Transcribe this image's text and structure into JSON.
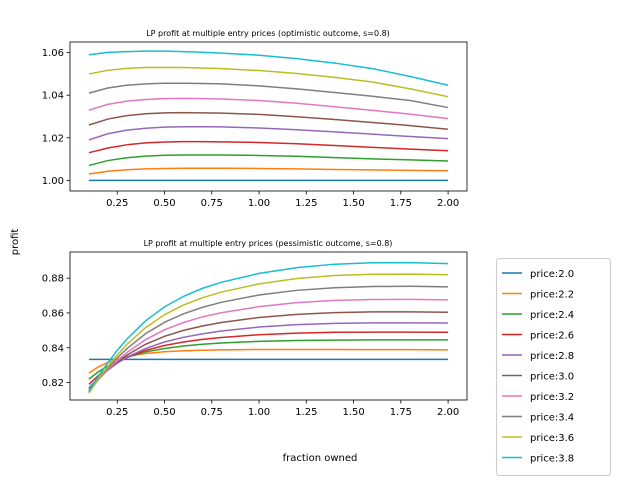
{
  "chart_data": [
    {
      "type": "line",
      "title": "LP profit at multiple entry prices (optimistic outcome, s=0.8)",
      "xlabel": "",
      "ylabel": "",
      "xlim": [
        0.0,
        2.1
      ],
      "ylim": [
        0.995,
        1.065
      ],
      "xticks": [
        0.25,
        0.5,
        0.75,
        1.0,
        1.25,
        1.5,
        1.75,
        2.0
      ],
      "xtick_labels": [
        "0.25",
        "0.50",
        "0.75",
        "1.00",
        "1.25",
        "1.50",
        "1.75",
        "2.00"
      ],
      "yticks": [
        1.0,
        1.02,
        1.04,
        1.06
      ],
      "ytick_labels": [
        "1.00",
        "1.02",
        "1.04",
        "1.06"
      ],
      "x": [
        0.1,
        0.2,
        0.3,
        0.4,
        0.5,
        0.6,
        0.7,
        0.8,
        1.0,
        1.2,
        1.4,
        1.6,
        1.8,
        2.0
      ],
      "series": [
        {
          "values": [
            1.0,
            1.0,
            1.0,
            1.0,
            1.0,
            1.0,
            1.0,
            1.0,
            1.0,
            1.0,
            1.0,
            1.0,
            1.0,
            1.0
          ]
        },
        {
          "values": [
            1.003,
            1.0043,
            1.005,
            1.0054,
            1.0056,
            1.0057,
            1.0057,
            1.0057,
            1.0056,
            1.0054,
            1.0051,
            1.0049,
            1.0047,
            1.0045
          ]
        },
        {
          "values": [
            1.007,
            1.0093,
            1.0106,
            1.0114,
            1.0118,
            1.0119,
            1.0119,
            1.0119,
            1.0117,
            1.0113,
            1.0107,
            1.0101,
            1.0096,
            1.0091
          ]
        },
        {
          "values": [
            1.013,
            1.0152,
            1.0167,
            1.0176,
            1.018,
            1.0182,
            1.0182,
            1.0181,
            1.0178,
            1.0172,
            1.0164,
            1.0155,
            1.0147,
            1.0139
          ]
        },
        {
          "values": [
            1.019,
            1.0219,
            1.0236,
            1.0245,
            1.025,
            1.0252,
            1.0252,
            1.0251,
            1.0246,
            1.0238,
            1.0228,
            1.0217,
            1.0206,
            1.0196
          ]
        },
        {
          "values": [
            1.026,
            1.0288,
            1.0304,
            1.0313,
            1.0317,
            1.0318,
            1.0317,
            1.0316,
            1.031,
            1.0299,
            1.0286,
            1.0272,
            1.0257,
            1.024
          ]
        },
        {
          "values": [
            1.033,
            1.0357,
            1.0372,
            1.038,
            1.0384,
            1.0385,
            1.0384,
            1.0382,
            1.0375,
            1.0362,
            1.0346,
            1.0329,
            1.0311,
            1.029
          ]
        },
        {
          "values": [
            1.041,
            1.0434,
            1.0447,
            1.0453,
            1.0456,
            1.0456,
            1.0455,
            1.0453,
            1.0444,
            1.043,
            1.0413,
            1.0395,
            1.0375,
            1.0342
          ]
        },
        {
          "values": [
            1.05,
            1.0517,
            1.0526,
            1.053,
            1.0531,
            1.053,
            1.0528,
            1.0525,
            1.0516,
            1.0502,
            1.0484,
            1.0462,
            1.043,
            1.0393
          ]
        },
        {
          "values": [
            1.059,
            1.0601,
            1.0605,
            1.0607,
            1.0607,
            1.0605,
            1.0602,
            1.0598,
            1.0588,
            1.0572,
            1.0551,
            1.0525,
            1.0488,
            1.0447
          ]
        }
      ]
    },
    {
      "type": "line",
      "title": "LP profit at multiple entry prices (pessimistic outcome, s=0.8)",
      "xlabel": "fraction owned",
      "ylabel": "",
      "xlim": [
        0.0,
        2.1
      ],
      "ylim": [
        0.81,
        0.895
      ],
      "xticks": [
        0.25,
        0.5,
        0.75,
        1.0,
        1.25,
        1.5,
        1.75,
        2.0
      ],
      "xtick_labels": [
        "0.25",
        "0.50",
        "0.75",
        "1.00",
        "1.25",
        "1.50",
        "1.75",
        "2.00"
      ],
      "yticks": [
        0.82,
        0.84,
        0.86,
        0.88
      ],
      "ytick_labels": [
        "0.82",
        "0.84",
        "0.86",
        "0.88"
      ],
      "x": [
        0.1,
        0.15,
        0.2,
        0.25,
        0.3,
        0.4,
        0.5,
        0.6,
        0.7,
        0.8,
        1.0,
        1.2,
        1.4,
        1.6,
        1.8,
        2.0
      ],
      "series": [
        {
          "values": [
            0.8333,
            0.8333,
            0.8333,
            0.8333,
            0.8333,
            0.8333,
            0.8333,
            0.8333,
            0.8333,
            0.8333,
            0.8333,
            0.8333,
            0.8333,
            0.8333,
            0.8333,
            0.8333
          ]
        },
        {
          "values": [
            0.8255,
            0.829,
            0.8316,
            0.8336,
            0.835,
            0.8367,
            0.8377,
            0.8383,
            0.8386,
            0.8388,
            0.839,
            0.839,
            0.839,
            0.8389,
            0.8389,
            0.8388
          ]
        },
        {
          "values": [
            0.822,
            0.8262,
            0.8296,
            0.8323,
            0.8345,
            0.8376,
            0.8396,
            0.841,
            0.842,
            0.8427,
            0.8437,
            0.8442,
            0.8444,
            0.8445,
            0.8445,
            0.8445
          ]
        },
        {
          "values": [
            0.819,
            0.824,
            0.8282,
            0.8315,
            0.8343,
            0.8385,
            0.8413,
            0.8433,
            0.8448,
            0.8459,
            0.8475,
            0.8484,
            0.8489,
            0.849,
            0.849,
            0.8489
          ]
        },
        {
          "values": [
            0.817,
            0.8226,
            0.8272,
            0.8311,
            0.8345,
            0.8396,
            0.8433,
            0.846,
            0.848,
            0.8496,
            0.8519,
            0.8533,
            0.854,
            0.8543,
            0.8543,
            0.8542
          ]
        },
        {
          "values": [
            0.816,
            0.822,
            0.8272,
            0.8318,
            0.8357,
            0.842,
            0.8466,
            0.85,
            0.8525,
            0.8545,
            0.8574,
            0.8592,
            0.8602,
            0.8606,
            0.8606,
            0.8604
          ]
        },
        {
          "values": [
            0.815,
            0.8216,
            0.8274,
            0.8326,
            0.8372,
            0.8447,
            0.8503,
            0.8545,
            0.8577,
            0.8601,
            0.8636,
            0.8659,
            0.8672,
            0.8677,
            0.8678,
            0.8675
          ]
        },
        {
          "values": [
            0.8145,
            0.8218,
            0.8283,
            0.8342,
            0.8394,
            0.8481,
            0.8546,
            0.8595,
            0.8632,
            0.8661,
            0.8703,
            0.873,
            0.8745,
            0.8752,
            0.8753,
            0.875
          ]
        },
        {
          "values": [
            0.814,
            0.822,
            0.8293,
            0.8358,
            0.8418,
            0.8516,
            0.859,
            0.8645,
            0.8687,
            0.872,
            0.8767,
            0.8798,
            0.8815,
            0.8822,
            0.8823,
            0.8819
          ]
        },
        {
          "values": [
            0.815,
            0.8236,
            0.8314,
            0.8385,
            0.8449,
            0.8555,
            0.8635,
            0.8695,
            0.8741,
            0.8776,
            0.8827,
            0.886,
            0.888,
            0.8888,
            0.8889,
            0.8883
          ]
        }
      ]
    }
  ],
  "shared": {
    "ylabel": "profit"
  },
  "legend": {
    "placement": "outside-right",
    "items": [
      "price:2.0",
      "price:2.2",
      "price:2.4",
      "price:2.6",
      "price:2.8",
      "price:3.0",
      "price:3.2",
      "price:3.4",
      "price:3.6",
      "price:3.8"
    ],
    "colors": [
      "#1f77b4",
      "#ff7f0e",
      "#2ca02c",
      "#d62728",
      "#9467bd",
      "#8c564b",
      "#e377c2",
      "#7f7f7f",
      "#bcbd22",
      "#17becf"
    ]
  }
}
